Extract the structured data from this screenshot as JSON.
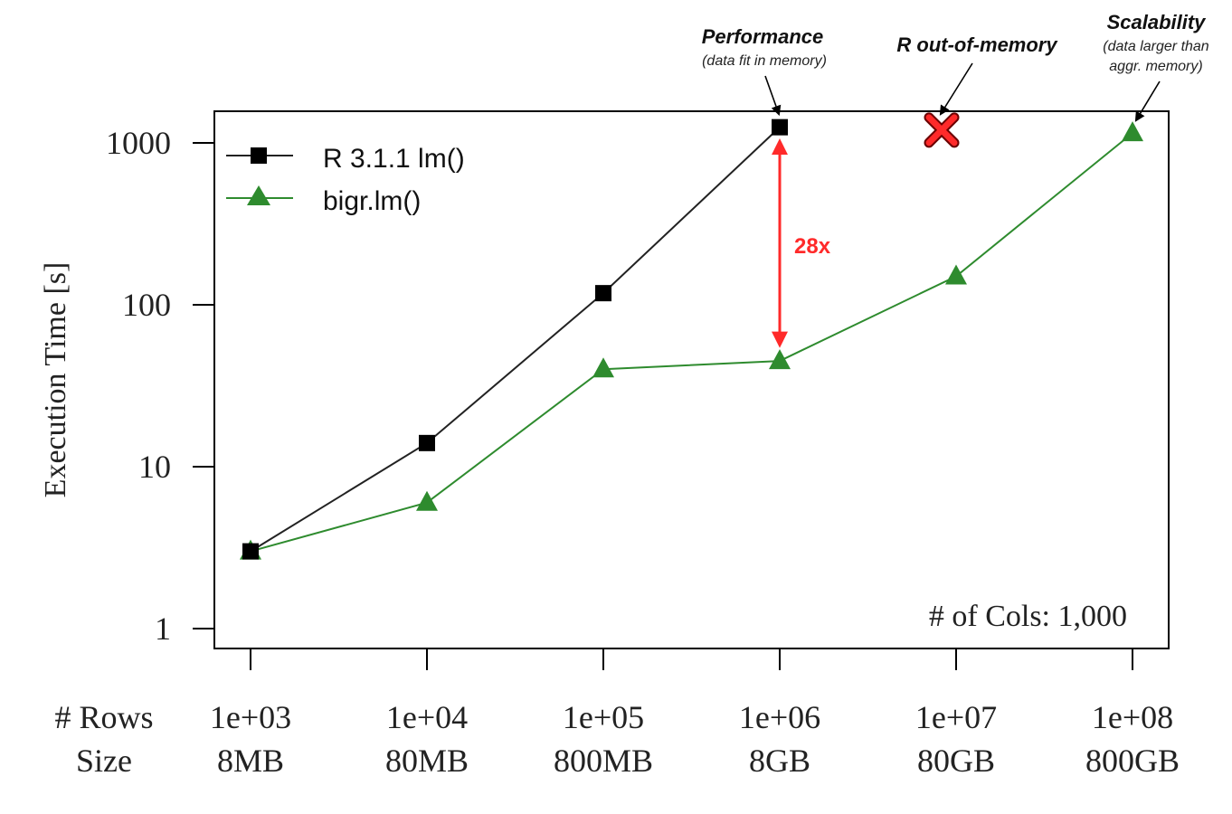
{
  "chart_data": {
    "type": "line",
    "title": "",
    "ylabel": "Execution Time [s]",
    "yscale": "log",
    "ylim": [
      1,
      1800
    ],
    "yticks": [
      1,
      10,
      100,
      1000
    ],
    "ytick_labels": [
      "1",
      "10",
      "100",
      "1000"
    ],
    "x_row_header": "# Rows",
    "x_size_header": "Size",
    "x_rows": [
      "1e+03",
      "1e+04",
      "1e+05",
      "1e+06",
      "1e+07",
      "1e+08"
    ],
    "x_sizes": [
      "8MB",
      "80MB",
      "800MB",
      "8GB",
      "80GB",
      "800GB"
    ],
    "series": [
      {
        "name": "R 3.1.1 lm()",
        "marker": "square",
        "color": "#000000",
        "line_color": "#222222",
        "values": [
          3,
          14,
          118,
          1250,
          null,
          null
        ]
      },
      {
        "name": "bigr.lm()",
        "marker": "triangle",
        "color": "#2e8b2e",
        "line_color": "#2e8b2e",
        "values": [
          3,
          6,
          40,
          45,
          150,
          1150
        ]
      }
    ],
    "legend_position": "top-left",
    "cols_note": "# of Cols: 1,000",
    "speedup": {
      "label": "28x",
      "at_index": 3,
      "from": 45,
      "to": 1250,
      "color": "#ff2a2a"
    },
    "oom_marker": {
      "at_index": 4,
      "value": 1200,
      "color": "#ff2a2a",
      "stroke": "#6a0000"
    },
    "annotations": {
      "performance": {
        "title": "Performance",
        "subtitle": "(data fit in memory)"
      },
      "oom": {
        "title": "R out-of-memory"
      },
      "scalability": {
        "title": "Scalability",
        "subtitle1": "(data larger than",
        "subtitle2": "aggr. memory)"
      }
    }
  }
}
